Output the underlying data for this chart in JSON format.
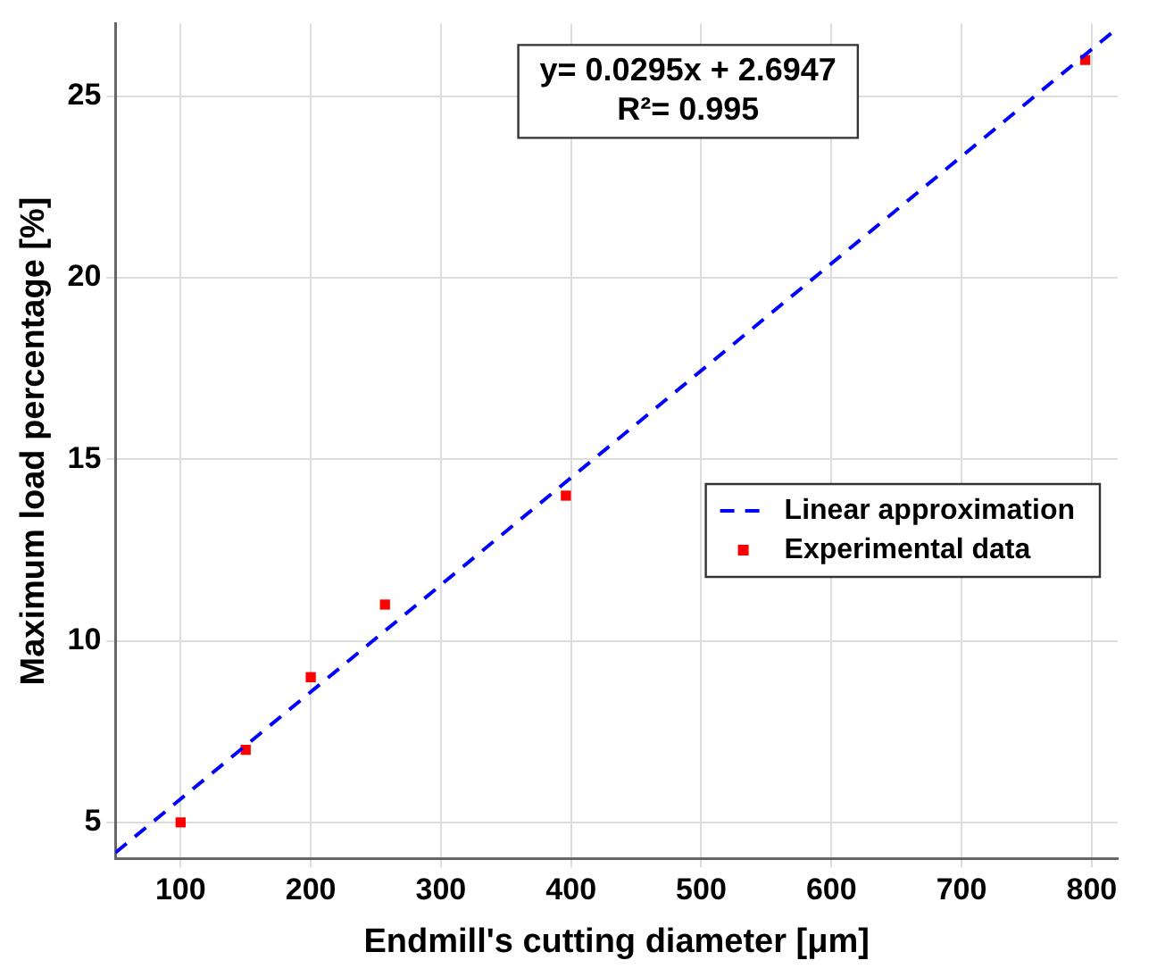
{
  "chart_data": {
    "type": "scatter",
    "xlabel": "Endmill's cutting diameter [μm]",
    "ylabel": "Maximum load percentage [%]",
    "annotations": [
      "y= 0.0295x + 2.6947",
      "R²= 0.995"
    ],
    "series": [
      {
        "name": "Linear approximation",
        "type": "line",
        "color": "#0000ff",
        "line_style": "dashed",
        "marker": "none",
        "x": [
          50,
          820
        ],
        "values": [
          4.17,
          26.88
        ]
      },
      {
        "name": "Experimental data",
        "color": "#ff0000",
        "marker": "square",
        "x": [
          100,
          150,
          200,
          257,
          396,
          795
        ],
        "values": [
          5,
          7,
          9,
          11,
          14,
          26
        ]
      }
    ],
    "xlim": [
      50,
      820
    ],
    "ylim": [
      4,
      27
    ],
    "xticks": [
      100,
      200,
      300,
      400,
      500,
      600,
      700,
      800
    ],
    "yticks": [
      5,
      10,
      15,
      20,
      25
    ],
    "grid": true,
    "legend": "right"
  }
}
